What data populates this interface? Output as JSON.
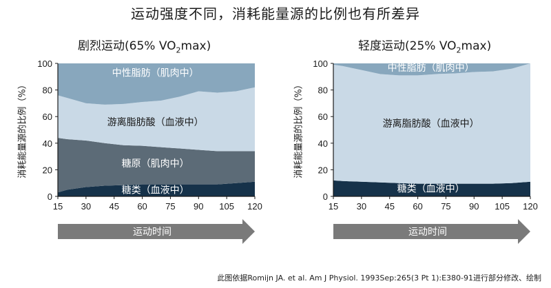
{
  "title": "运动强度不同，消耗能量源的比例也有所差异",
  "footnote": "此图依据Romijn JA. et al. Am J Physiol. 1993Sep:265(3 Pt 1):E380-91进行部分修改、绘制",
  "chart_data": [
    {
      "type": "area",
      "title_prefix": "剧烈运动(65% VO",
      "title_sub": "2",
      "title_suffix": "max)",
      "ylabel": "消耗能量源的比例（%）",
      "xlabel": "运动时间",
      "ylim": [
        0,
        100
      ],
      "yticks": [
        0,
        20,
        40,
        60,
        80,
        100
      ],
      "xlim": [
        15,
        120
      ],
      "xticks": [
        15,
        30,
        45,
        60,
        75,
        90,
        105,
        120
      ],
      "x": [
        15,
        20,
        30,
        40,
        50,
        60,
        70,
        80,
        90,
        100,
        110,
        120
      ],
      "series": [
        {
          "name": "糖类（血液中）",
          "color": "#16324a",
          "label_x": 67,
          "label_y": 5,
          "values": [
            3,
            5,
            7,
            8,
            8.5,
            9,
            9,
            9,
            9,
            9,
            10,
            11
          ]
        },
        {
          "name": "糖原（肌肉中）",
          "color": "#5c6b77",
          "label_x": 67,
          "label_y": 25,
          "values": [
            41,
            38,
            35,
            32,
            30,
            29,
            28,
            27,
            26,
            25,
            24,
            23
          ]
        },
        {
          "name": "游离脂肪酸（血液中）",
          "color": "#c9d9e6",
          "label_x": 67,
          "label_y": 56,
          "values": [
            32,
            31,
            28,
            29,
            31,
            33,
            35,
            39,
            44,
            44,
            45,
            48
          ]
        },
        {
          "name": "中性脂肪（肌肉中）",
          "color": "#88a7bd",
          "label_x": 67,
          "label_y": 93,
          "values": [
            24,
            26,
            30,
            31,
            30.5,
            29,
            28,
            25,
            21,
            22,
            21,
            18
          ]
        }
      ]
    },
    {
      "type": "area",
      "title_prefix": "轻度运动(25% VO",
      "title_sub": "2",
      "title_suffix": "max)",
      "ylabel": "消耗能量源的比例（%）",
      "xlabel": "运动时间",
      "ylim": [
        0,
        100
      ],
      "yticks": [
        0,
        20,
        40,
        60,
        80,
        100
      ],
      "xlim": [
        15,
        120
      ],
      "xticks": [
        15,
        30,
        45,
        60,
        75,
        90,
        105,
        120
      ],
      "x": [
        15,
        20,
        30,
        40,
        50,
        60,
        70,
        80,
        90,
        100,
        110,
        120
      ],
      "series": [
        {
          "name": "糖类（血液中）",
          "color": "#16324a",
          "label_x": 67,
          "label_y": 6,
          "values": [
            12,
            11.5,
            11,
            10.5,
            10,
            9.5,
            9.5,
            9.5,
            9.5,
            9.5,
            10,
            11
          ]
        },
        {
          "name": "糖原（肌肉中）",
          "color": "#5c6b77",
          "label_x": null,
          "label_y": null,
          "values": [
            0,
            0,
            0,
            0,
            0,
            0,
            0,
            0,
            0,
            0,
            0,
            0
          ]
        },
        {
          "name": "游离脂肪酸（血液中）",
          "color": "#c9d9e6",
          "label_x": 67,
          "label_y": 55,
          "values": [
            87,
            86.5,
            84,
            81.5,
            81,
            81.5,
            82.5,
            83,
            84,
            84.5,
            86,
            89
          ]
        },
        {
          "name": "中性脂肪（肌肉中）",
          "color": "#88a7bd",
          "label_x": 67,
          "label_y": 97,
          "values": [
            1,
            2,
            5,
            8,
            9,
            9,
            8,
            7.5,
            6.5,
            6,
            4,
            0
          ]
        }
      ]
    }
  ]
}
